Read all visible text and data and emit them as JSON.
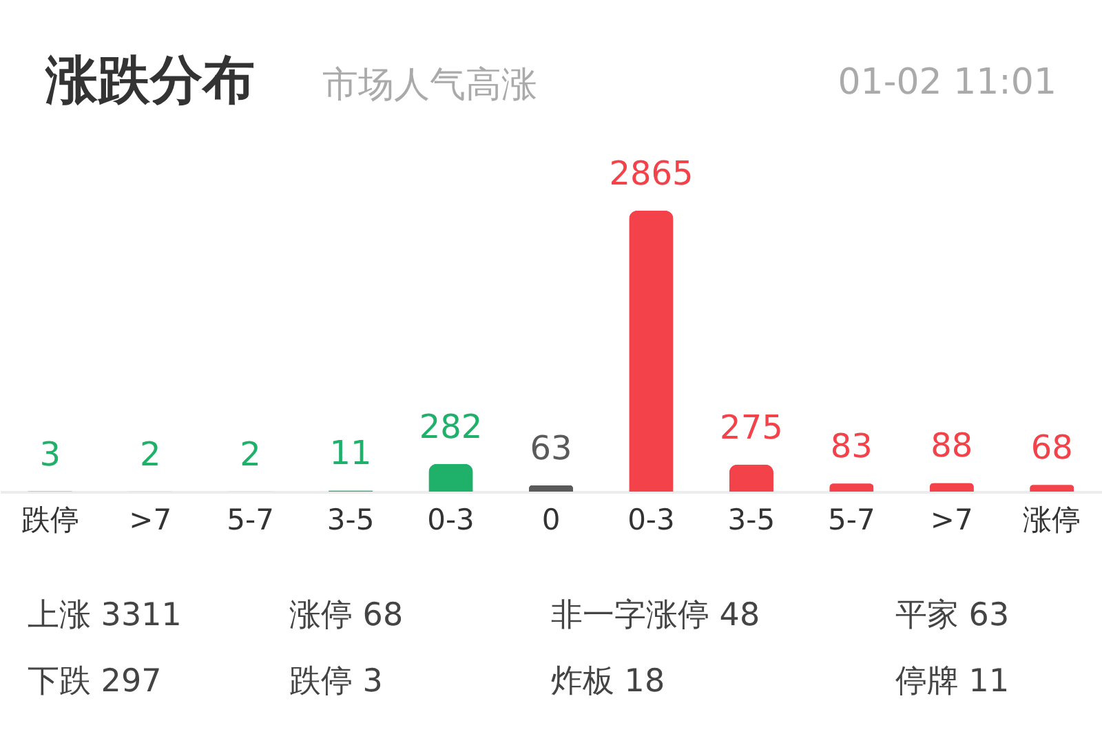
{
  "chart_data": {
    "type": "bar",
    "title": "涨跌分布",
    "subtitle": "市场人气高涨",
    "categories": [
      "跌停",
      ">7",
      "5-7",
      "3-5",
      "0-3",
      "0",
      "0-3",
      "3-5",
      "5-7",
      ">7",
      "涨停"
    ],
    "values": [
      3,
      2,
      2,
      11,
      282,
      63,
      2865,
      275,
      83,
      88,
      68
    ],
    "colors": [
      "#1fb06a",
      "#1fb06a",
      "#1fb06a",
      "#1fb06a",
      "#1fb06a",
      "#5a5a5a",
      "#f3424a",
      "#f3424a",
      "#f3424a",
      "#f3424a",
      "#f3424a"
    ],
    "data_labels": true,
    "annotations": [
      "01-02 11:01",
      "上涨 3311",
      "涨停 68",
      "非一字涨停 48",
      "平家 63",
      "下跌 297",
      "跌停 3",
      "炸板 18",
      "停牌 11"
    ]
  }
}
